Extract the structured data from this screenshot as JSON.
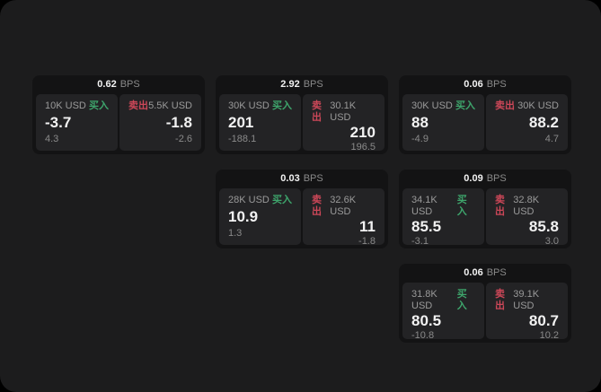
{
  "colors": {
    "background": "#000000",
    "panel": "#1c1c1d",
    "card": "#131314",
    "tile": "#232325",
    "text_primary": "#f2f2f2",
    "text_secondary": "#9a9a9a",
    "buy_green": "#3ea56c",
    "sell_red": "#cc4758"
  },
  "labels": {
    "bps_unit": "BPS",
    "buy": "买入",
    "sell": "卖出"
  },
  "cards": [
    {
      "row": 1,
      "col": 1,
      "bps": "0.62",
      "buy": {
        "size": "10K USD",
        "price": "-3.7",
        "delta": "4.3"
      },
      "sell": {
        "size": "5.5K USD",
        "price": "-1.8",
        "delta": "-2.6"
      }
    },
    {
      "row": 1,
      "col": 2,
      "bps": "2.92",
      "buy": {
        "size": "30K USD",
        "price": "201",
        "delta": "-188.1"
      },
      "sell": {
        "size": "30.1K USD",
        "price": "210",
        "delta": "196.5"
      }
    },
    {
      "row": 1,
      "col": 3,
      "bps": "0.06",
      "buy": {
        "size": "30K USD",
        "price": "88",
        "delta": "-4.9"
      },
      "sell": {
        "size": "30K USD",
        "price": "88.2",
        "delta": "4.7"
      }
    },
    {
      "row": 2,
      "col": 2,
      "bps": "0.03",
      "buy": {
        "size": "28K USD",
        "price": "10.9",
        "delta": "1.3"
      },
      "sell": {
        "size": "32.6K USD",
        "price": "11",
        "delta": "-1.8"
      }
    },
    {
      "row": 2,
      "col": 3,
      "bps": "0.09",
      "buy": {
        "size": "34.1K USD",
        "price": "85.5",
        "delta": "-3.1"
      },
      "sell": {
        "size": "32.8K USD",
        "price": "85.8",
        "delta": "3.0"
      }
    },
    {
      "row": 3,
      "col": 3,
      "bps": "0.06",
      "buy": {
        "size": "31.8K USD",
        "price": "80.5",
        "delta": "-10.8"
      },
      "sell": {
        "size": "39.1K USD",
        "price": "80.7",
        "delta": "10.2"
      }
    }
  ]
}
